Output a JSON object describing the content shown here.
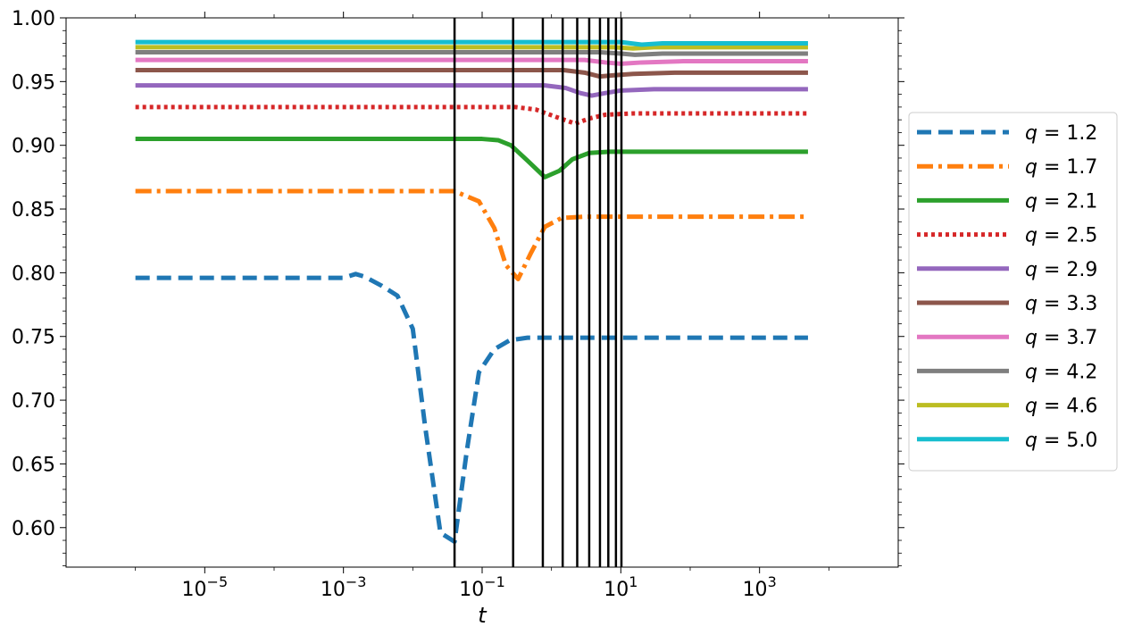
{
  "chart_data": {
    "type": "line",
    "title": "",
    "xlabel": "t",
    "ylabel": "",
    "x_scale": "log",
    "xlim": [
      1e-07,
      100000
    ],
    "ylim": [
      0.569,
      1.0
    ],
    "x_ticks": [
      {
        "value": 1e-05,
        "base": "10",
        "exp": "−5"
      },
      {
        "value": 0.001,
        "base": "10",
        "exp": "−3"
      },
      {
        "value": 0.1,
        "base": "10",
        "exp": "−1"
      },
      {
        "value": 10,
        "base": "10",
        "exp": "1"
      },
      {
        "value": 1000,
        "base": "10",
        "exp": "3"
      }
    ],
    "y_ticks": [
      0.6,
      0.65,
      0.7,
      0.75,
      0.8,
      0.85,
      0.9,
      0.95,
      1.0
    ],
    "y_tick_labels": [
      "0.60",
      "0.65",
      "0.70",
      "0.75",
      "0.80",
      "0.85",
      "0.90",
      "0.95",
      "1.00"
    ],
    "vertical_lines": [
      0.04,
      0.28,
      0.75,
      1.45,
      2.35,
      3.5,
      5.0,
      6.6,
      8.5,
      10.2
    ],
    "legend": {
      "placement": "right, outside plot"
    },
    "series": [
      {
        "name": "q = 1.2",
        "label_prefix": "q",
        "label_value": "= 1.2",
        "color": "#1f77b4",
        "dash": "16,8",
        "points": [
          [
            1e-06,
            0.796
          ],
          [
            0.0001,
            0.796
          ],
          [
            0.001,
            0.796
          ],
          [
            0.0015,
            0.799
          ],
          [
            0.002,
            0.797
          ],
          [
            0.0035,
            0.79
          ],
          [
            0.006,
            0.782
          ],
          [
            0.01,
            0.756
          ],
          [
            0.015,
            0.68
          ],
          [
            0.025,
            0.596
          ],
          [
            0.04,
            0.589
          ],
          [
            0.06,
            0.66
          ],
          [
            0.09,
            0.722
          ],
          [
            0.15,
            0.74
          ],
          [
            0.25,
            0.747
          ],
          [
            0.45,
            0.749
          ],
          [
            1,
            0.749
          ],
          [
            10,
            0.749
          ],
          [
            100,
            0.749
          ],
          [
            5000,
            0.749
          ]
        ]
      },
      {
        "name": "q = 1.7",
        "label_prefix": "q",
        "label_value": "= 1.7",
        "color": "#ff7f0e",
        "dash": "18,6,4,6",
        "points": [
          [
            1e-06,
            0.864
          ],
          [
            0.0001,
            0.864
          ],
          [
            0.01,
            0.864
          ],
          [
            0.04,
            0.864
          ],
          [
            0.09,
            0.856
          ],
          [
            0.15,
            0.835
          ],
          [
            0.22,
            0.806
          ],
          [
            0.33,
            0.795
          ],
          [
            0.5,
            0.815
          ],
          [
            0.8,
            0.836
          ],
          [
            1.4,
            0.843
          ],
          [
            3,
            0.844
          ],
          [
            10,
            0.844
          ],
          [
            100,
            0.844
          ],
          [
            5000,
            0.844
          ]
        ]
      },
      {
        "name": "q = 2.1",
        "label_prefix": "q",
        "label_value": "= 2.1",
        "color": "#2ca02c",
        "dash": "",
        "points": [
          [
            1e-06,
            0.905
          ],
          [
            0.0001,
            0.905
          ],
          [
            0.1,
            0.905
          ],
          [
            0.17,
            0.904
          ],
          [
            0.26,
            0.9
          ],
          [
            0.45,
            0.888
          ],
          [
            0.8,
            0.875
          ],
          [
            1.3,
            0.88
          ],
          [
            2,
            0.889
          ],
          [
            3.5,
            0.894
          ],
          [
            7,
            0.895
          ],
          [
            30,
            0.895
          ],
          [
            5000,
            0.895
          ]
        ]
      },
      {
        "name": "q = 2.5",
        "label_prefix": "q",
        "label_value": "= 2.5",
        "color": "#d62728",
        "dash": "4,4",
        "points": [
          [
            1e-06,
            0.93
          ],
          [
            0.0001,
            0.93
          ],
          [
            0.3,
            0.93
          ],
          [
            0.6,
            0.928
          ],
          [
            1.2,
            0.922
          ],
          [
            2.2,
            0.917
          ],
          [
            3.5,
            0.921
          ],
          [
            6,
            0.924
          ],
          [
            15,
            0.925
          ],
          [
            5000,
            0.925
          ]
        ]
      },
      {
        "name": "q = 2.9",
        "label_prefix": "q",
        "label_value": "= 2.9",
        "color": "#9467bd",
        "dash": "",
        "points": [
          [
            1e-06,
            0.947
          ],
          [
            0.0001,
            0.947
          ],
          [
            0.8,
            0.947
          ],
          [
            1.6,
            0.945
          ],
          [
            2.6,
            0.941
          ],
          [
            3.8,
            0.939
          ],
          [
            6,
            0.941
          ],
          [
            10,
            0.943
          ],
          [
            30,
            0.944
          ],
          [
            5000,
            0.944
          ]
        ]
      },
      {
        "name": "q = 3.3",
        "label_prefix": "q",
        "label_value": "= 3.3",
        "color": "#8c564b",
        "dash": "",
        "points": [
          [
            1e-06,
            0.959
          ],
          [
            0.0001,
            0.959
          ],
          [
            1.5,
            0.959
          ],
          [
            3,
            0.957
          ],
          [
            5,
            0.954
          ],
          [
            8,
            0.955
          ],
          [
            15,
            0.956
          ],
          [
            60,
            0.957
          ],
          [
            5000,
            0.957
          ]
        ]
      },
      {
        "name": "q = 3.7",
        "label_prefix": "q",
        "label_value": "= 3.7",
        "color": "#e377c2",
        "dash": "",
        "points": [
          [
            1e-06,
            0.967
          ],
          [
            0.0001,
            0.967
          ],
          [
            3,
            0.967
          ],
          [
            6,
            0.965
          ],
          [
            10,
            0.964
          ],
          [
            20,
            0.965
          ],
          [
            80,
            0.966
          ],
          [
            5000,
            0.966
          ]
        ]
      },
      {
        "name": "q = 4.2",
        "label_prefix": "q",
        "label_value": "= 4.2",
        "color": "#7f7f7f",
        "dash": "",
        "points": [
          [
            1e-06,
            0.973
          ],
          [
            0.0001,
            0.973
          ],
          [
            5,
            0.973
          ],
          [
            10,
            0.972
          ],
          [
            16,
            0.971
          ],
          [
            40,
            0.972
          ],
          [
            150,
            0.972
          ],
          [
            5000,
            0.972
          ]
        ]
      },
      {
        "name": "q = 4.6",
        "label_prefix": "q",
        "label_value": "= 4.6",
        "color": "#bcbd22",
        "dash": "",
        "points": [
          [
            1e-06,
            0.977
          ],
          [
            0.0001,
            0.977
          ],
          [
            8,
            0.977
          ],
          [
            15,
            0.976
          ],
          [
            30,
            0.977
          ],
          [
            5000,
            0.977
          ]
        ]
      },
      {
        "name": "q = 5.0",
        "label_prefix": "q",
        "label_value": "= 5.0",
        "color": "#17becf",
        "dash": "",
        "points": [
          [
            1e-06,
            0.981
          ],
          [
            0.0001,
            0.981
          ],
          [
            10,
            0.981
          ],
          [
            20,
            0.979
          ],
          [
            40,
            0.98
          ],
          [
            150,
            0.98
          ],
          [
            5000,
            0.98
          ]
        ]
      }
    ]
  }
}
